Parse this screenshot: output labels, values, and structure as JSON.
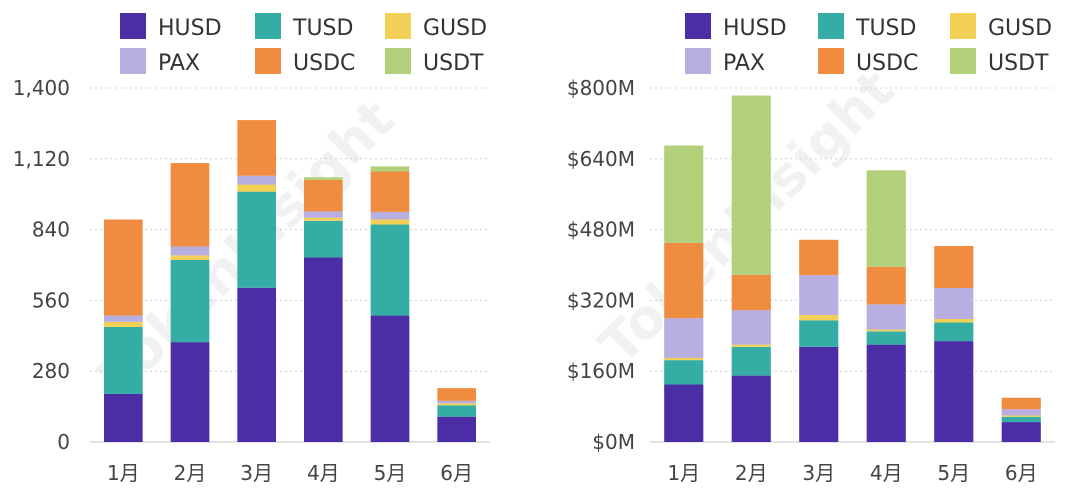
{
  "colors": {
    "HUSD": "#4b2ea6",
    "TUSD": "#35ada5",
    "GUSD": "#f2cf55",
    "PAX": "#b8aee0",
    "USDC": "#ef8c3f",
    "USDT": "#b2d07a"
  },
  "chart_data": [
    {
      "type": "bar",
      "stacked": true,
      "categories": [
        "1月",
        "2月",
        "3月",
        "4月",
        "5月",
        "6月"
      ],
      "ylim": [
        0,
        1400
      ],
      "yticks": [
        "0",
        "280",
        "560",
        "840",
        "1,120",
        "1,400"
      ],
      "ytick_values": [
        0,
        280,
        560,
        840,
        1120,
        1400
      ],
      "grid": true,
      "legend_position": "top",
      "series": [
        {
          "name": "HUSD",
          "values": [
            190,
            395,
            610,
            730,
            500,
            100
          ]
        },
        {
          "name": "TUSD",
          "values": [
            265,
            325,
            380,
            145,
            360,
            45
          ]
        },
        {
          "name": "GUSD",
          "values": [
            20,
            18,
            28,
            12,
            20,
            8
          ]
        },
        {
          "name": "PAX",
          "values": [
            25,
            35,
            35,
            25,
            30,
            10
          ]
        },
        {
          "name": "USDC",
          "values": [
            380,
            330,
            220,
            125,
            160,
            50
          ]
        },
        {
          "name": "USDT",
          "values": [
            0,
            0,
            0,
            10,
            20,
            0
          ]
        }
      ]
    },
    {
      "type": "bar",
      "stacked": true,
      "categories": [
        "1月",
        "2月",
        "3月",
        "4月",
        "5月",
        "6月"
      ],
      "ylim": [
        0,
        800
      ],
      "yticks": [
        "$0M",
        "$160M",
        "$320M",
        "$480M",
        "$640M",
        "$800M"
      ],
      "ytick_values": [
        0,
        160,
        320,
        480,
        640,
        800
      ],
      "grid": true,
      "legend_position": "top",
      "series": [
        {
          "name": "HUSD",
          "values": [
            130,
            150,
            215,
            220,
            228,
            45
          ]
        },
        {
          "name": "TUSD",
          "values": [
            55,
            65,
            60,
            30,
            42,
            12
          ]
        },
        {
          "name": "GUSD",
          "values": [
            5,
            5,
            12,
            4,
            8,
            3
          ]
        },
        {
          "name": "PAX",
          "values": [
            90,
            78,
            90,
            57,
            70,
            14
          ]
        },
        {
          "name": "USDC",
          "values": [
            170,
            80,
            80,
            85,
            95,
            26
          ]
        },
        {
          "name": "USDT",
          "values": [
            220,
            405,
            0,
            218,
            0,
            0
          ]
        }
      ]
    }
  ],
  "legend": [
    "HUSD",
    "TUSD",
    "GUSD",
    "PAX",
    "USDC",
    "USDT"
  ],
  "watermark": "TokenInsight"
}
